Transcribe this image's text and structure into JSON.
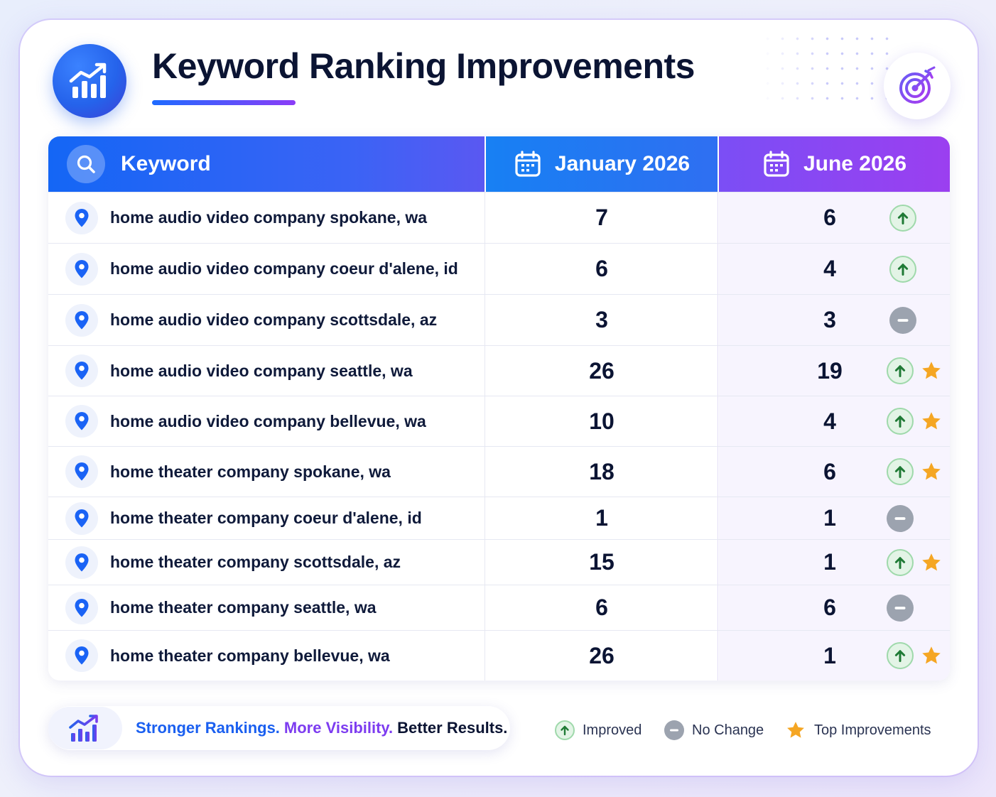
{
  "title": "Keyword Ranking Improvements",
  "colors": {
    "accent_blue": "#1466f5",
    "accent_purple": "#8b3cf7",
    "improved_green": "#1f7a35",
    "no_change_gray": "#9ca3af",
    "star_gold": "#f5a623"
  },
  "table": {
    "headers": {
      "keyword": "Keyword",
      "january": "January 2026",
      "june": "June 2026"
    },
    "rows": [
      {
        "keyword": "home audio video company spokane, wa",
        "jan": "7",
        "jun": "6",
        "status": "improved",
        "top": false
      },
      {
        "keyword": "home audio video company coeur d'alene, id",
        "jan": "6",
        "jun": "4",
        "status": "improved",
        "top": false
      },
      {
        "keyword": "home audio video company scottsdale, az",
        "jan": "3",
        "jun": "3",
        "status": "no-change",
        "top": false
      },
      {
        "keyword": "home audio video company seattle, wa",
        "jan": "26",
        "jun": "19",
        "status": "improved",
        "top": true
      },
      {
        "keyword": "home audio video company bellevue, wa",
        "jan": "10",
        "jun": "4",
        "status": "improved",
        "top": true
      },
      {
        "keyword": "home theater company spokane, wa",
        "jan": "18",
        "jun": "6",
        "status": "improved",
        "top": true
      },
      {
        "keyword": "home theater company coeur d'alene, id",
        "jan": "1",
        "jun": "1",
        "status": "no-change",
        "top": false
      },
      {
        "keyword": "home theater company scottsdale, az",
        "jan": "15",
        "jun": "1",
        "status": "improved",
        "top": true
      },
      {
        "keyword": "home theater company seattle, wa",
        "jan": "6",
        "jun": "6",
        "status": "no-change",
        "top": false
      },
      {
        "keyword": "home theater company bellevue, wa",
        "jan": "26",
        "jun": "1",
        "status": "improved",
        "top": true
      }
    ]
  },
  "footer": {
    "tagline_part1": "Stronger Rankings.",
    "tagline_part2": "More Visibility.",
    "tagline_part3": "Better Results.",
    "legend": {
      "improved": "Improved",
      "no_change": "No Change",
      "top": "Top Improvements"
    }
  },
  "icons": [
    "growth-chart-icon",
    "target-icon",
    "search-icon",
    "calendar-icon",
    "location-pin-icon",
    "arrow-up-icon",
    "minus-icon",
    "star-icon"
  ]
}
